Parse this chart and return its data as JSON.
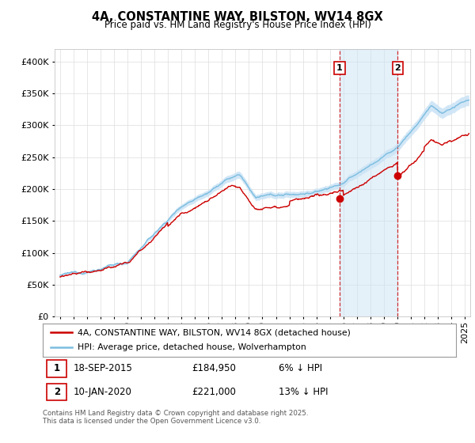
{
  "title": "4A, CONSTANTINE WAY, BILSTON, WV14 8GX",
  "subtitle": "Price paid vs. HM Land Registry's House Price Index (HPI)",
  "ylabel_ticks": [
    "£0",
    "£50K",
    "£100K",
    "£150K",
    "£200K",
    "£250K",
    "£300K",
    "£350K",
    "£400K"
  ],
  "ytick_values": [
    0,
    50000,
    100000,
    150000,
    200000,
    250000,
    300000,
    350000,
    400000
  ],
  "ylim": [
    0,
    420000
  ],
  "xlim_start": 1994.6,
  "xlim_end": 2025.4,
  "marker1_x": 2015.72,
  "marker2_x": 2020.03,
  "marker1_y": 184950,
  "marker2_y": 221000,
  "marker1_label": "1",
  "marker2_label": "2",
  "hpi_color": "#7bbde0",
  "hpi_fill_color": "#cce4f5",
  "price_color": "#cc0000",
  "legend_price_label": "4A, CONSTANTINE WAY, BILSTON, WV14 8GX (detached house)",
  "legend_hpi_label": "HPI: Average price, detached house, Wolverhampton",
  "footnote": "Contains HM Land Registry data © Crown copyright and database right 2025.\nThis data is licensed under the Open Government Licence v3.0.",
  "table_row1": [
    "1",
    "18-SEP-2015",
    "£184,950",
    "6% ↓ HPI"
  ],
  "table_row2": [
    "2",
    "10-JAN-2020",
    "£221,000",
    "13% ↓ HPI"
  ]
}
